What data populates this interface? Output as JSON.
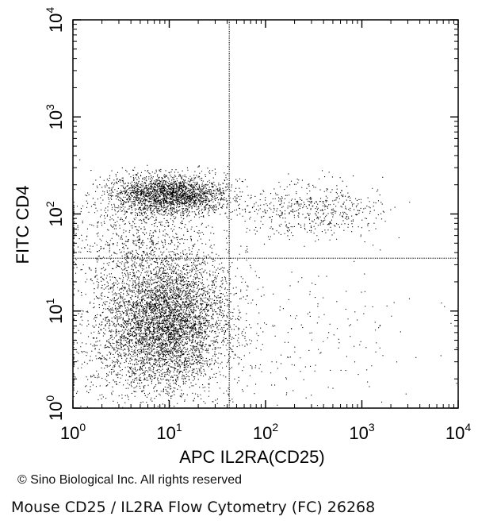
{
  "chart_data": {
    "type": "scatter",
    "title": "",
    "xlabel": "APC IL2RA(CD25)",
    "ylabel": "FITC CD4",
    "xscale": "log",
    "yscale": "log",
    "xlim": [
      1,
      10000
    ],
    "ylim": [
      1,
      10000
    ],
    "x_ticks": [
      {
        "base": "10",
        "exp": "0"
      },
      {
        "base": "10",
        "exp": "1"
      },
      {
        "base": "10",
        "exp": "2"
      },
      {
        "base": "10",
        "exp": "3"
      },
      {
        "base": "10",
        "exp": "4"
      }
    ],
    "y_ticks": [
      {
        "base": "10",
        "exp": "0"
      },
      {
        "base": "10",
        "exp": "1"
      },
      {
        "base": "10",
        "exp": "2"
      },
      {
        "base": "10",
        "exp": "3"
      },
      {
        "base": "10",
        "exp": "4"
      }
    ],
    "gates": {
      "x": 42,
      "y": 35
    },
    "point_color": "#000000",
    "grid": false,
    "populations": [
      {
        "center": [
          9,
          8
        ],
        "spread": [
          0.34,
          0.36
        ],
        "weight": 0.58
      },
      {
        "center": [
          10,
          160
        ],
        "spread": [
          0.3,
          0.1
        ],
        "weight": 0.25
      },
      {
        "center": [
          300,
          110
        ],
        "spread": [
          0.38,
          0.14
        ],
        "weight": 0.06
      },
      {
        "center": [
          4,
          60
        ],
        "spread": [
          0.4,
          0.25
        ],
        "weight": 0.07
      },
      {
        "center": [
          300,
          5
        ],
        "spread": [
          0.55,
          0.35
        ],
        "weight": 0.02
      },
      {
        "center": [
          2,
          3
        ],
        "spread": [
          0.25,
          0.3
        ],
        "weight": 0.02
      }
    ]
  },
  "footer": {
    "credit": "© Sino Biological Inc. All rights reserved",
    "caption": "Mouse CD25 / IL2RA Flow Cytometry (FC) 26268"
  }
}
